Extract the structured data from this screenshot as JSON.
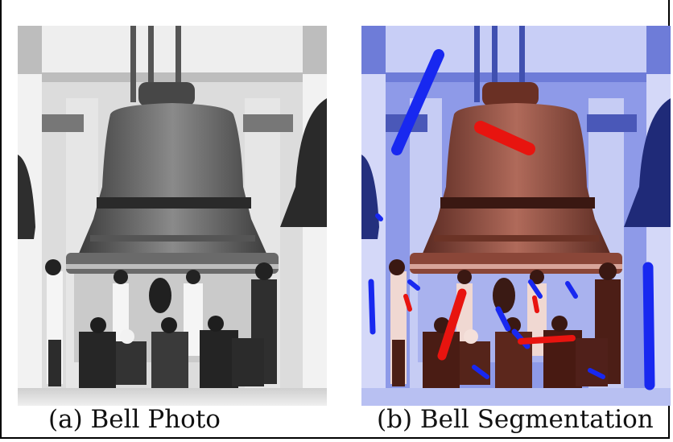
{
  "figure": {
    "panel_a": {
      "caption": "(a) Bell Photo"
    },
    "panel_b": {
      "caption": "(b) Bell Segmentation"
    }
  },
  "colors": {
    "foreground_stroke": "#e8140f",
    "background_stroke": "#1828f0",
    "tint_background": "#4a5fe0",
    "tint_foreground": "#c0503a"
  }
}
